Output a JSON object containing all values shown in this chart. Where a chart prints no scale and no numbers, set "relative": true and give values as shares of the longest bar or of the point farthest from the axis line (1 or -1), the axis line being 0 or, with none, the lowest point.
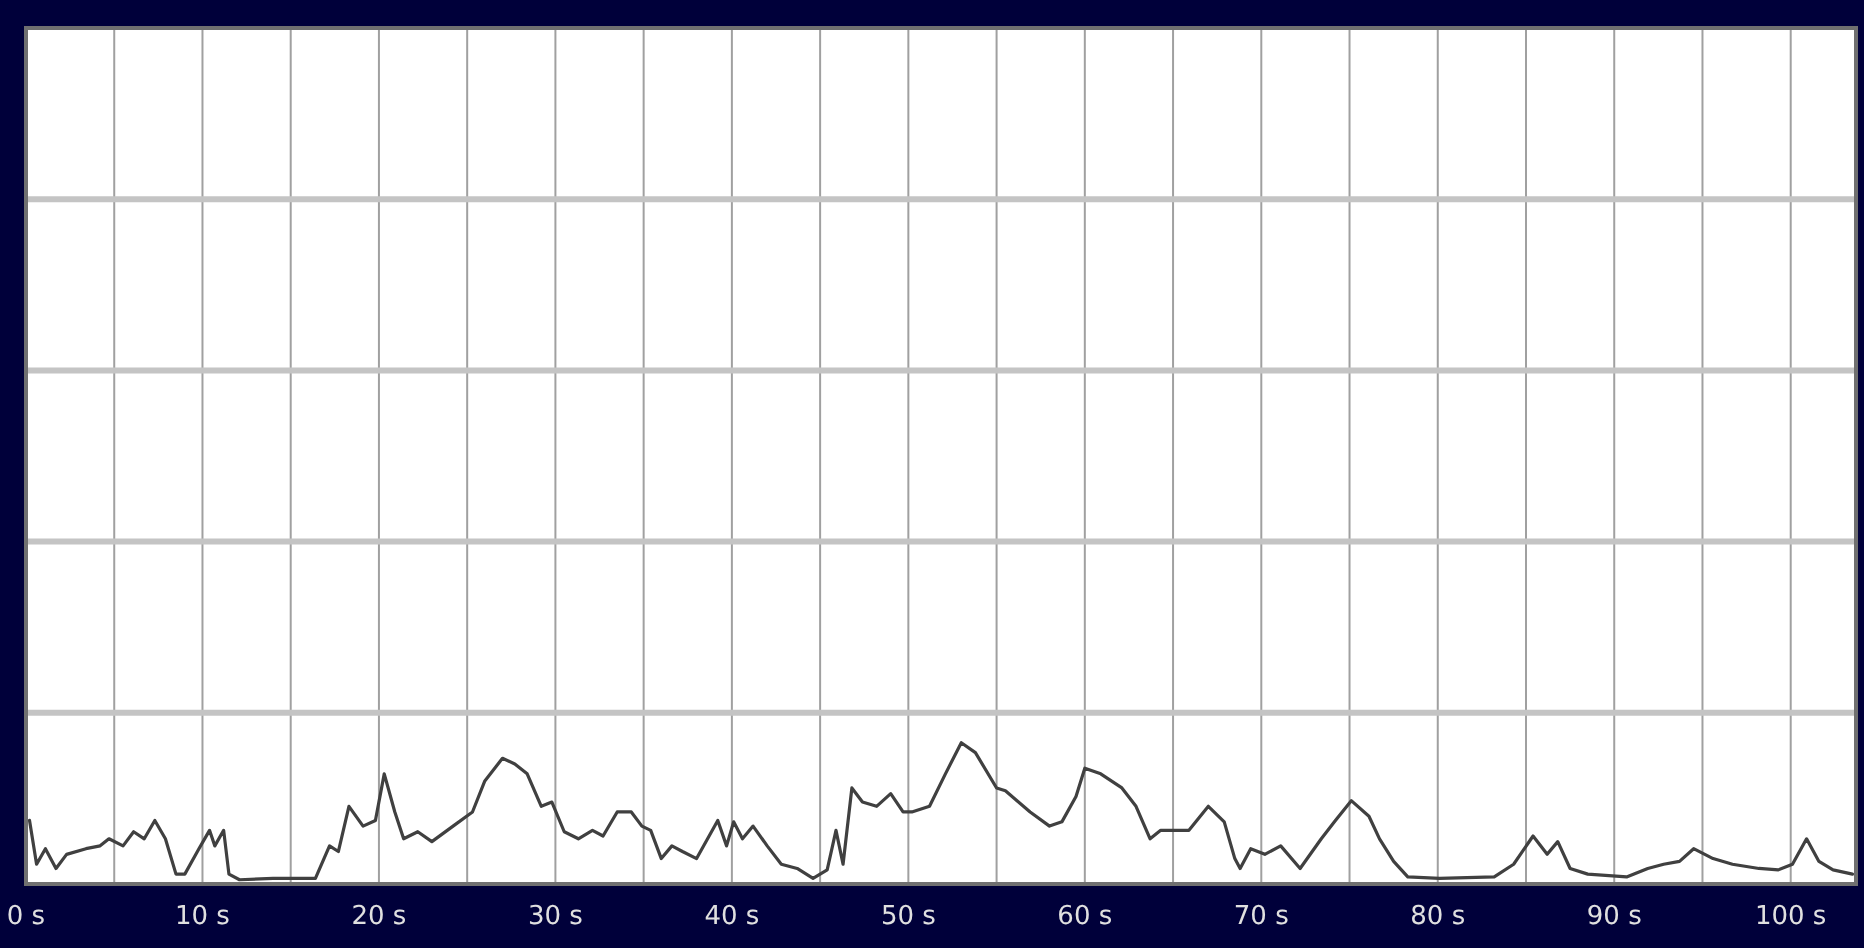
{
  "chart_data": {
    "type": "line",
    "relative": true,
    "grid": true,
    "xlim": [
      0,
      103.7
    ],
    "xticks": [
      {
        "value": 0,
        "label": "0 s"
      },
      {
        "value": 5,
        "label": null
      },
      {
        "value": 10,
        "label": "10 s"
      },
      {
        "value": 15,
        "label": null
      },
      {
        "value": 20,
        "label": "20 s"
      },
      {
        "value": 25,
        "label": null
      },
      {
        "value": 30,
        "label": "30 s"
      },
      {
        "value": 35,
        "label": null
      },
      {
        "value": 40,
        "label": "40 s"
      },
      {
        "value": 45,
        "label": null
      },
      {
        "value": 50,
        "label": "50 s"
      },
      {
        "value": 55,
        "label": null
      },
      {
        "value": 60,
        "label": "60 s"
      },
      {
        "value": 65,
        "label": null
      },
      {
        "value": 70,
        "label": "70 s"
      },
      {
        "value": 75,
        "label": null
      },
      {
        "value": 80,
        "label": "80 s"
      },
      {
        "value": 85,
        "label": null
      },
      {
        "value": 90,
        "label": "90 s"
      },
      {
        "value": 95,
        "label": null
      },
      {
        "value": 100,
        "label": "100 s"
      }
    ],
    "series": [
      {
        "color": "#404040",
        "x": [
          0.2,
          0.6,
          1.1,
          1.7,
          2.3,
          3.4,
          4.2,
          4.7,
          5.5,
          6.1,
          6.7,
          7.3,
          7.9,
          8.5,
          9.0,
          9.8,
          10.4,
          10.7,
          11.2,
          11.5,
          12.1,
          14.0,
          16.4,
          17.2,
          17.7,
          18.3,
          19.1,
          19.8,
          20.3,
          20.9,
          21.4,
          22.2,
          23.0,
          24.2,
          25.3,
          26.0,
          27.0,
          27.7,
          28.4,
          29.2,
          29.8,
          30.5,
          31.3,
          32.1,
          32.7,
          33.5,
          34.3,
          34.9,
          35.4,
          36.0,
          36.6,
          37.2,
          38.0,
          39.2,
          39.7,
          40.1,
          40.6,
          41.2,
          42.0,
          42.8,
          43.7,
          44.6,
          45.4,
          45.9,
          46.3,
          46.8,
          47.4,
          48.2,
          49.0,
          49.7,
          50.2,
          51.2,
          52.1,
          53.0,
          53.8,
          55.0,
          55.5,
          56.9,
          58.0,
          58.7,
          59.5,
          60.0,
          60.9,
          62.1,
          62.9,
          63.7,
          64.3,
          65.9,
          67.0,
          67.9,
          68.5,
          68.8,
          69.4,
          70.2,
          71.1,
          72.2,
          73.4,
          74.2,
          75.1,
          76.1,
          76.7,
          77.5,
          78.3,
          80.1,
          83.2,
          84.3,
          85.4,
          86.2,
          86.8,
          87.5,
          88.5,
          90.7,
          91.9,
          92.8,
          93.7,
          94.5,
          95.6,
          96.7,
          98.2,
          99.3,
          100.1,
          100.9,
          101.6,
          102.4,
          103.5
        ],
        "values": [
          0.45,
          0.14,
          0.25,
          0.11,
          0.21,
          0.25,
          0.27,
          0.32,
          0.27,
          0.37,
          0.32,
          0.45,
          0.32,
          0.07,
          0.07,
          0.25,
          0.38,
          0.27,
          0.38,
          0.07,
          0.03,
          0.04,
          0.04,
          0.27,
          0.23,
          0.55,
          0.41,
          0.45,
          0.78,
          0.51,
          0.32,
          0.37,
          0.3,
          0.41,
          0.51,
          0.73,
          0.89,
          0.85,
          0.78,
          0.55,
          0.58,
          0.37,
          0.32,
          0.38,
          0.34,
          0.51,
          0.51,
          0.41,
          0.38,
          0.18,
          0.27,
          0.23,
          0.18,
          0.45,
          0.27,
          0.44,
          0.32,
          0.41,
          0.27,
          0.14,
          0.11,
          0.04,
          0.1,
          0.38,
          0.14,
          0.68,
          0.58,
          0.55,
          0.64,
          0.51,
          0.51,
          0.55,
          0.78,
          1,
          0.93,
          0.68,
          0.66,
          0.51,
          0.41,
          0.44,
          0.62,
          0.82,
          0.78,
          0.68,
          0.55,
          0.32,
          0.38,
          0.38,
          0.55,
          0.44,
          0.18,
          0.11,
          0.25,
          0.21,
          0.27,
          0.11,
          0.32,
          0.45,
          0.59,
          0.48,
          0.32,
          0.16,
          0.05,
          0.04,
          0.05,
          0.14,
          0.34,
          0.21,
          0.3,
          0.11,
          0.07,
          0.05,
          0.11,
          0.14,
          0.16,
          0.25,
          0.18,
          0.14,
          0.11,
          0.1,
          0.14,
          0.32,
          0.16,
          0.1,
          0.07
        ]
      }
    ]
  }
}
